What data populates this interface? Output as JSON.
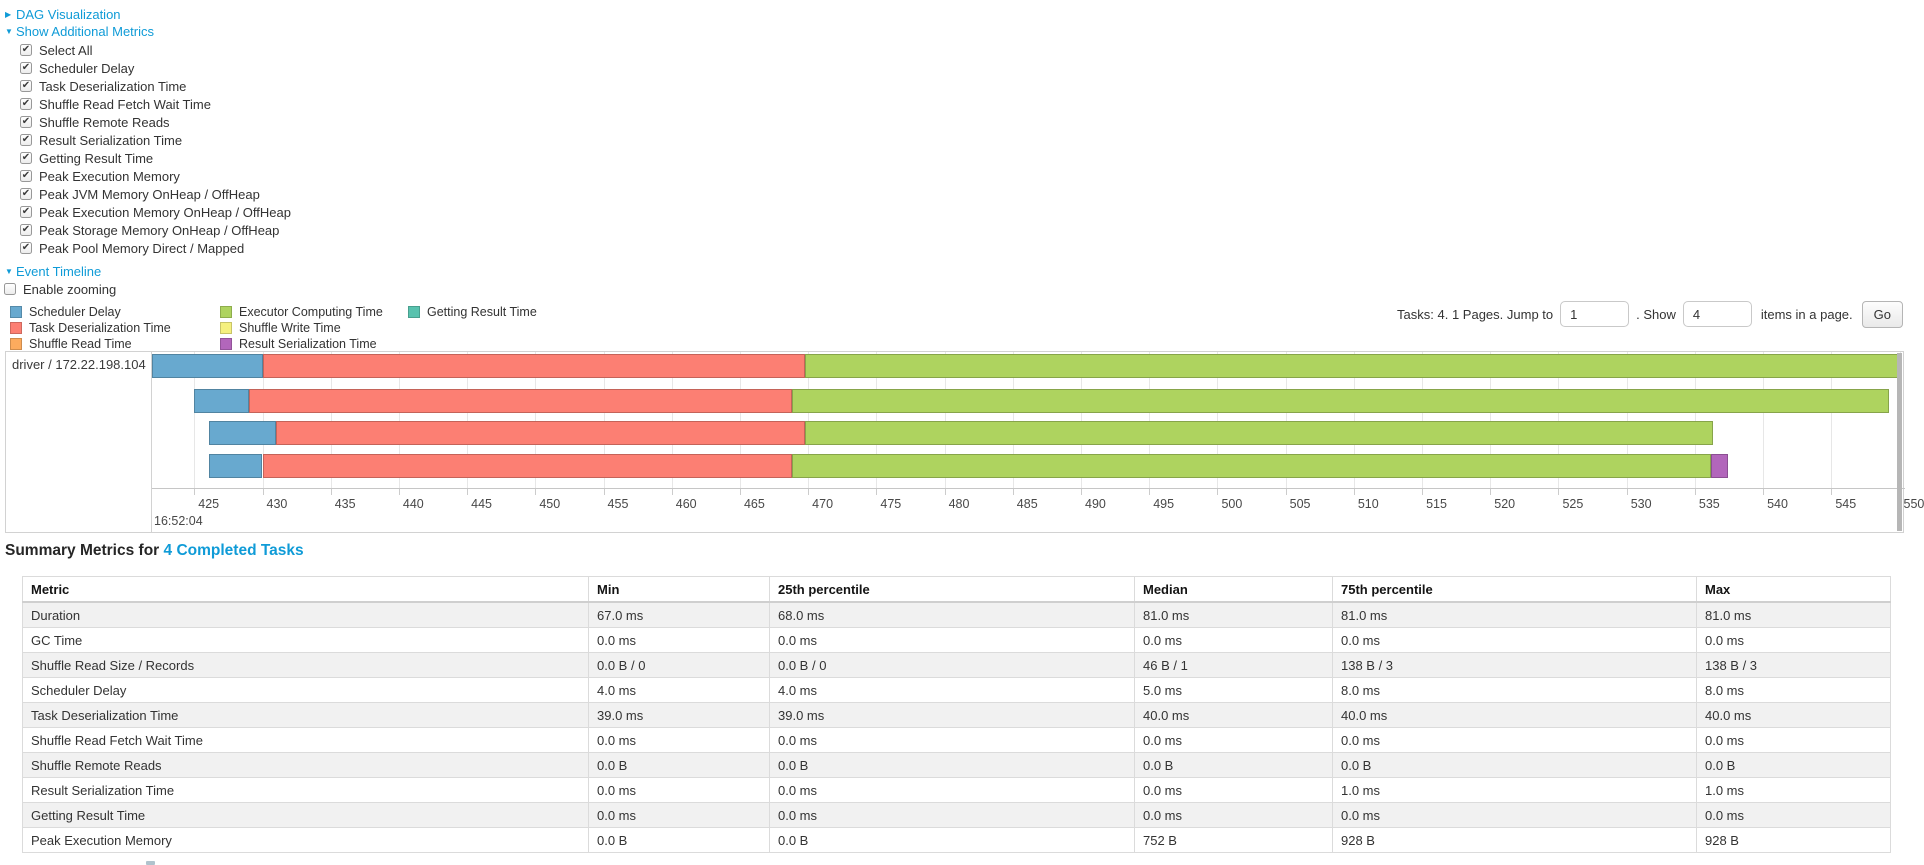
{
  "colors": {
    "link": "#0f9bd7",
    "scheduler_delay": "#68a9cf",
    "task_deserialization": "#fc7f73",
    "shuffle_read": "#fcab5e",
    "executor_computing": "#aed35f",
    "shuffle_write": "#f5f07f",
    "result_serialization": "#b266bb",
    "getting_result": "#58c2ae"
  },
  "controls": {
    "dag_label": "DAG Visualization",
    "metrics_label": "Show Additional Metrics",
    "event_timeline_label": "Event Timeline",
    "enable_zooming_label": "Enable zooming",
    "metric_checkboxes": [
      {
        "label": "Select All",
        "checked": true
      },
      {
        "label": "Scheduler Delay",
        "checked": true
      },
      {
        "label": "Task Deserialization Time",
        "checked": true
      },
      {
        "label": "Shuffle Read Fetch Wait Time",
        "checked": true
      },
      {
        "label": "Shuffle Remote Reads",
        "checked": true
      },
      {
        "label": "Result Serialization Time",
        "checked": true
      },
      {
        "label": "Getting Result Time",
        "checked": true
      },
      {
        "label": "Peak Execution Memory",
        "checked": true
      },
      {
        "label": "Peak JVM Memory OnHeap / OffHeap",
        "checked": true
      },
      {
        "label": "Peak Execution Memory OnHeap / OffHeap",
        "checked": true
      },
      {
        "label": "Peak Storage Memory OnHeap / OffHeap",
        "checked": true
      },
      {
        "label": "Peak Pool Memory Direct / Mapped",
        "checked": true
      }
    ]
  },
  "legend": {
    "columns": [
      [
        {
          "label": "Scheduler Delay",
          "color": "scheduler_delay"
        },
        {
          "label": "Task Deserialization Time",
          "color": "task_deserialization"
        },
        {
          "label": "Shuffle Read Time",
          "color": "shuffle_read"
        }
      ],
      [
        {
          "label": "Executor Computing Time",
          "color": "executor_computing"
        },
        {
          "label": "Shuffle Write Time",
          "color": "shuffle_write"
        },
        {
          "label": "Result Serialization Time",
          "color": "result_serialization"
        }
      ],
      [
        {
          "label": "Getting Result Time",
          "color": "getting_result"
        }
      ]
    ]
  },
  "pagination": {
    "prefix": "Tasks: 4. 1 Pages. Jump to",
    "jump_value": "1",
    "mid": ". Show",
    "show_value": "4",
    "suffix": "items in a page.",
    "go_label": "Go"
  },
  "timeline": {
    "row_label": "driver / 172.22.198.104",
    "axis_start": 421.9,
    "axis_end": 550.4,
    "ticks": [
      425,
      430,
      435,
      440,
      445,
      450,
      455,
      460,
      465,
      470,
      475,
      480,
      485,
      490,
      495,
      500,
      505,
      510,
      515,
      520,
      525,
      530,
      535,
      540,
      545,
      550
    ],
    "major_label": "16:52:04",
    "tasks": [
      {
        "segments": [
          {
            "color": "scheduler_delay",
            "start": 421.9,
            "end": 430.0
          },
          {
            "color": "task_deserialization",
            "start": 430.0,
            "end": 469.8
          },
          {
            "color": "executor_computing",
            "start": 469.8,
            "end": 550.0
          }
        ]
      },
      {
        "segments": [
          {
            "color": "scheduler_delay",
            "start": 425.0,
            "end": 429.0
          },
          {
            "color": "task_deserialization",
            "start": 429.0,
            "end": 468.8
          },
          {
            "color": "executor_computing",
            "start": 468.8,
            "end": 549.2
          }
        ]
      },
      {
        "segments": [
          {
            "color": "scheduler_delay",
            "start": 426.1,
            "end": 431.0
          },
          {
            "color": "task_deserialization",
            "start": 431.0,
            "end": 469.8
          },
          {
            "color": "executor_computing",
            "start": 469.8,
            "end": 536.3
          }
        ]
      },
      {
        "segments": [
          {
            "color": "scheduler_delay",
            "start": 426.1,
            "end": 430.0
          },
          {
            "color": "task_deserialization",
            "start": 430.0,
            "end": 468.8
          },
          {
            "color": "executor_computing",
            "start": 468.8,
            "end": 536.2
          },
          {
            "color": "result_serialization",
            "start": 536.2,
            "end": 537.4
          }
        ]
      }
    ]
  },
  "summary": {
    "heading_prefix": "Summary Metrics for",
    "heading_link": "4 Completed Tasks",
    "columns": [
      "Metric",
      "Min",
      "25th percentile",
      "Median",
      "75th percentile",
      "Max"
    ],
    "rows": [
      [
        "Duration",
        "67.0 ms",
        "68.0 ms",
        "81.0 ms",
        "81.0 ms",
        "81.0 ms"
      ],
      [
        "GC Time",
        "0.0 ms",
        "0.0 ms",
        "0.0 ms",
        "0.0 ms",
        "0.0 ms"
      ],
      [
        "Shuffle Read Size / Records",
        "0.0 B / 0",
        "0.0 B / 0",
        "46 B / 1",
        "138 B / 3",
        "138 B / 3"
      ],
      [
        "Scheduler Delay",
        "4.0 ms",
        "4.0 ms",
        "5.0 ms",
        "8.0 ms",
        "8.0 ms"
      ],
      [
        "Task Deserialization Time",
        "39.0 ms",
        "39.0 ms",
        "40.0 ms",
        "40.0 ms",
        "40.0 ms"
      ],
      [
        "Shuffle Read Fetch Wait Time",
        "0.0 ms",
        "0.0 ms",
        "0.0 ms",
        "0.0 ms",
        "0.0 ms"
      ],
      [
        "Shuffle Remote Reads",
        "0.0 B",
        "0.0 B",
        "0.0 B",
        "0.0 B",
        "0.0 B"
      ],
      [
        "Result Serialization Time",
        "0.0 ms",
        "0.0 ms",
        "0.0 ms",
        "1.0 ms",
        "1.0 ms"
      ],
      [
        "Getting Result Time",
        "0.0 ms",
        "0.0 ms",
        "0.0 ms",
        "0.0 ms",
        "0.0 ms"
      ],
      [
        "Peak Execution Memory",
        "0.0 B",
        "0.0 B",
        "752 B",
        "928 B",
        "928 B"
      ]
    ]
  }
}
